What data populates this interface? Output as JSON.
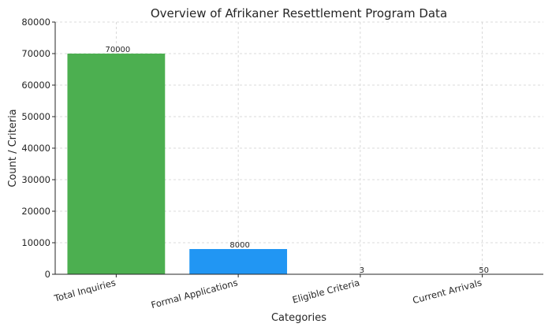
{
  "chart_data": {
    "type": "bar",
    "title": "Overview of Afrikaner Resettlement Program Data",
    "xlabel": "Categories",
    "ylabel": "Count / Criteria",
    "categories": [
      "Total Inquiries",
      "Formal Applications",
      "Eligible Criteria",
      "Current Arrivals"
    ],
    "values": [
      70000,
      8000,
      3,
      50
    ],
    "data_labels": [
      "70000",
      "8000",
      "3",
      "50"
    ],
    "colors": [
      "#4caf50",
      "#2196f3",
      "#ff9800",
      "#9c27b0"
    ],
    "ylim": [
      0,
      80000
    ],
    "yticks": [
      0,
      10000,
      20000,
      30000,
      40000,
      50000,
      60000,
      70000,
      80000
    ],
    "ytick_labels": [
      "0",
      "10000",
      "20000",
      "30000",
      "40000",
      "50000",
      "60000",
      "70000",
      "80000"
    ],
    "grid": true
  }
}
